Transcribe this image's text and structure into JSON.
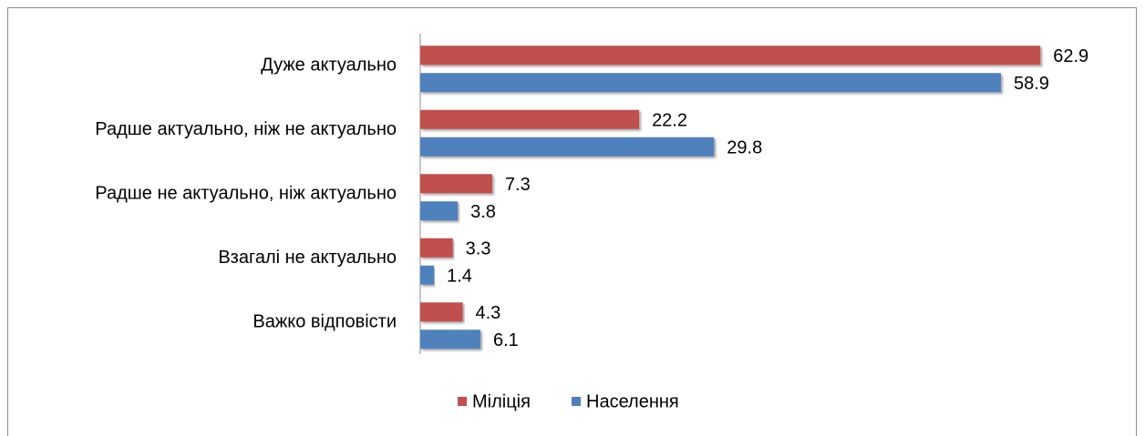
{
  "chart_data": {
    "type": "bar",
    "orientation": "horizontal",
    "categories": [
      "Дуже актуально",
      "Радше актуально, ніж не актуально",
      "Радше не актуально, ніж актуально",
      "Взагалі не актуально",
      "Важко відповісти"
    ],
    "series": [
      {
        "name": "Міліція",
        "color": "#c0504d",
        "values": [
          62.9,
          22.2,
          7.3,
          3.3,
          4.3
        ]
      },
      {
        "name": "Населення",
        "color": "#4f81bd",
        "values": [
          58.9,
          29.8,
          3.8,
          1.4,
          6.1
        ]
      }
    ],
    "xlim": [
      0,
      70
    ],
    "legend": "bottom"
  }
}
